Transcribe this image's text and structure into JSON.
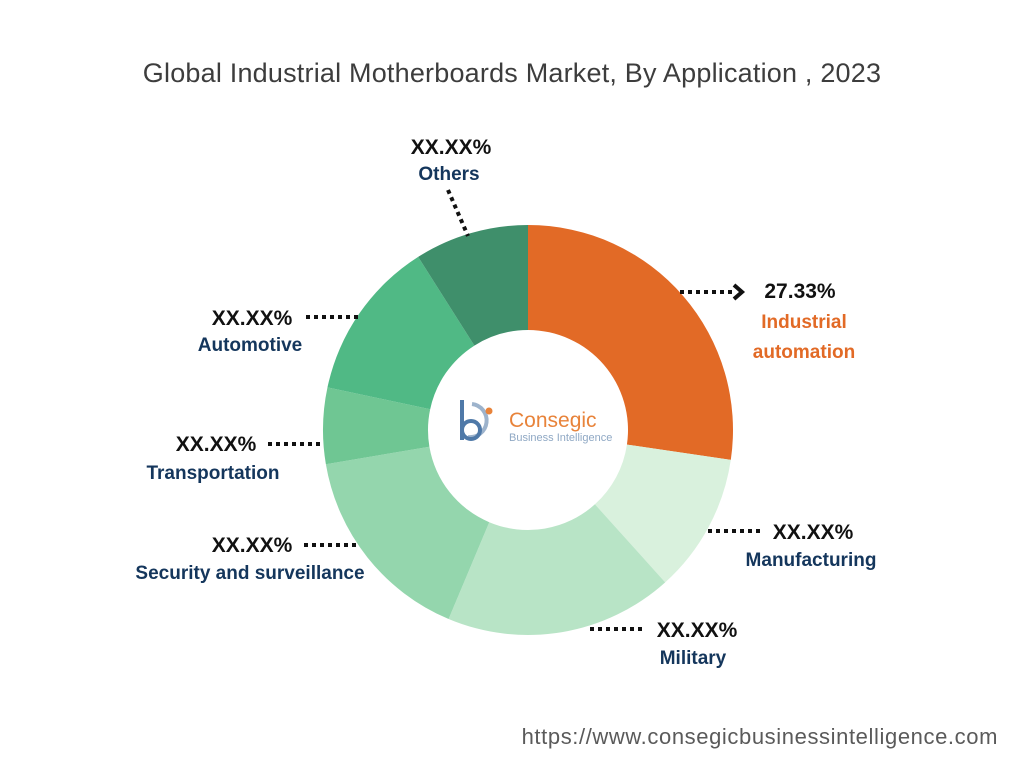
{
  "chart_data": {
    "type": "pie",
    "variant": "donut",
    "title": "Global Industrial Motherboards Market, By Application , 2023",
    "series": [
      {
        "name": "Industrial automation",
        "label_lines": [
          "Industrial",
          "automation"
        ],
        "value_label": "27.33%",
        "value": 27.33,
        "color": "#e26a26"
      },
      {
        "name": "Manufacturing",
        "label_lines": [
          "Manufacturing"
        ],
        "value_label": "XX.XX%",
        "value": 11.0,
        "color": "#d9f1dd"
      },
      {
        "name": "Military",
        "label_lines": [
          "Military"
        ],
        "value_label": "XX.XX%",
        "value": 18.0,
        "color": "#b8e4c6"
      },
      {
        "name": "Security and surveillance",
        "label_lines": [
          "Security and surveillance"
        ],
        "value_label": "XX.XX%",
        "value": 16.0,
        "color": "#94d6ad"
      },
      {
        "name": "Transportation",
        "label_lines": [
          "Transportation"
        ],
        "value_label": "XX.XX%",
        "value": 6.0,
        "color": "#6fc693"
      },
      {
        "name": "Automotive",
        "label_lines": [
          "Automotive"
        ],
        "value_label": "XX.XX%",
        "value": 12.67,
        "color": "#50b985"
      },
      {
        "name": "Others",
        "label_lines": [
          "Others"
        ],
        "value_label": "XX.XX%",
        "value": 9.0,
        "color": "#3f8f6b"
      }
    ]
  },
  "logo": {
    "name": "Consegic",
    "tagline": "Business Intelligence",
    "colors": {
      "orange": "#e8833a",
      "blue": "#8fa8c4"
    }
  },
  "footer": {
    "url": "https://www.consegicbusinessintelligence.com"
  }
}
